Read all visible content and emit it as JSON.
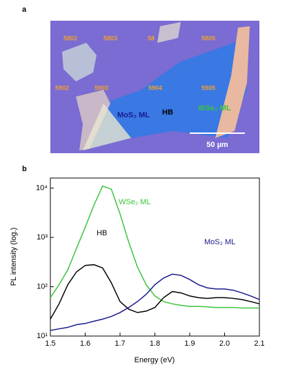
{
  "panel_a": {
    "label": "a",
    "markers": [
      "5802",
      "5803",
      "58",
      "5805",
      "5902",
      "5903",
      "5904",
      "5905"
    ],
    "annotations": {
      "mos2": "MoS₂ ML",
      "hb": "HB",
      "wse2": "WSe₂ ML"
    },
    "scale_bar": "50 µm"
  },
  "chart_data": {
    "type": "line",
    "panel_label": "b",
    "xlabel": "Energy (eV)",
    "ylabel": "PL intensity (log.)",
    "x": [
      1.5,
      1.525,
      1.55,
      1.575,
      1.6,
      1.625,
      1.65,
      1.675,
      1.7,
      1.725,
      1.75,
      1.775,
      1.8,
      1.825,
      1.85,
      1.875,
      1.9,
      1.925,
      1.95,
      1.975,
      2.0,
      2.025,
      2.05,
      2.075,
      2.1
    ],
    "series": [
      {
        "name": "WSe₂ ML",
        "color": "#3cc43c",
        "values": [
          60,
          110,
          220,
          600,
          1600,
          4500,
          11000,
          9500,
          3000,
          800,
          250,
          110,
          65,
          50,
          45,
          42,
          40,
          40,
          39,
          38,
          38,
          38,
          37,
          37,
          37
        ]
      },
      {
        "name": "HB",
        "color": "#000000",
        "values": [
          22,
          45,
          110,
          200,
          270,
          280,
          240,
          120,
          50,
          35,
          30,
          32,
          38,
          60,
          80,
          75,
          65,
          60,
          58,
          60,
          60,
          58,
          55,
          50,
          45
        ]
      },
      {
        "name": "MoS₂ ML",
        "color": "#1a1a8c",
        "values": [
          13,
          14,
          15,
          17,
          18,
          20,
          22,
          25,
          30,
          38,
          50,
          70,
          110,
          150,
          180,
          170,
          140,
          110,
          95,
          90,
          90,
          85,
          75,
          65,
          55
        ]
      }
    ],
    "xlim": [
      1.5,
      2.1
    ],
    "xticks": [
      1.5,
      1.6,
      1.7,
      1.8,
      1.9,
      {
        "value": 2,
        "label": "2.0"
      },
      2.1
    ],
    "ylim": [
      10,
      16000
    ],
    "log_y": true,
    "yticks": [
      {
        "value": 10,
        "label": "10¹"
      },
      {
        "value": 100,
        "label": "10²"
      },
      {
        "value": 1000,
        "label": "10³"
      },
      {
        "value": 10000,
        "label": "10⁴"
      }
    ]
  }
}
